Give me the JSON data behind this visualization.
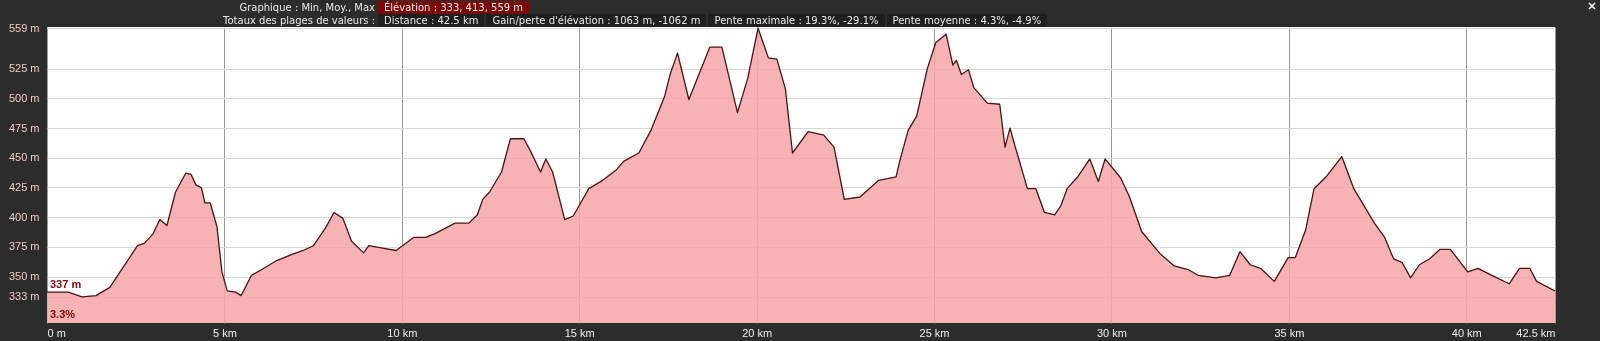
{
  "chart_data": {
    "type": "area",
    "title": "Graphique : Min, Moy., Max",
    "subtitle": "Totaux des plages de valeurs :",
    "annotations": [
      "Élévation : 333, 413, 559 m",
      "Distance : 42.5 km",
      "Gain/perte d'élévation : 1063 m, -1062 m",
      "Pente maximale : 19.3%, -29.1%",
      "Pente moyenne : 4.3%, -4.9%",
      {
        "text": "337 m",
        "x": 0,
        "y": 337
      },
      {
        "text": "3.3%",
        "x": 0
      }
    ],
    "series": [
      {
        "color": "#f6a5a7",
        "x": [
          0,
          0.6,
          0.99,
          1.38,
          1.77,
          2.06,
          2.55,
          2.74,
          2.99,
          3.18,
          3.38,
          3.62,
          3.91,
          4.06,
          4.2,
          4.35,
          4.45,
          4.6,
          4.79,
          4.93,
          5.08,
          5.32,
          5.47,
          5.76,
          6.05,
          6.44,
          6.93,
          7.22,
          7.51,
          7.85,
          8.09,
          8.34,
          8.58,
          8.92,
          9.07,
          9.46,
          9.84,
          10.33,
          10.67,
          10.92,
          11.5,
          11.89,
          12.13,
          12.28,
          12.47,
          12.81,
          13.06,
          13.44,
          13.62,
          13.91,
          14.06,
          14.25,
          14.59,
          14.83,
          15.27,
          15.66,
          16.05,
          16.25,
          16.68,
          17.02,
          17.41,
          17.56,
          17.77,
          18.09,
          18.68,
          19.02,
          19.46,
          19.75,
          20.04,
          20.33,
          20.57,
          20.81,
          21.01,
          21.45,
          21.89,
          22.18,
          22.47,
          22.91,
          23.44,
          23.93,
          24.03,
          24.27,
          24.51,
          24.81,
          25.05,
          25.34,
          25.53,
          25.63,
          25.77,
          25.97,
          26.12,
          26.5,
          26.85,
          27.0,
          27.14,
          27.29,
          27.63,
          27.87,
          28.11,
          28.4,
          28.58,
          28.75,
          29.05,
          29.39,
          29.63,
          29.82,
          30.26,
          30.51,
          30.85,
          31.38,
          31.77,
          32.16,
          32.45,
          32.94,
          33.33,
          33.62,
          33.91,
          34.2,
          34.59,
          34.98,
          35.18,
          35.47,
          35.71,
          36.05,
          36.49,
          36.83,
          37.41,
          37.7,
          37.95,
          38.19,
          38.43,
          38.68,
          38.97,
          39.26,
          39.55,
          40.04,
          40.33,
          40.72,
          41.21,
          41.5,
          41.79,
          41.98,
          42.5
        ],
        "values": [
          337,
          337,
          333,
          334,
          341,
          354,
          376,
          378,
          386,
          398,
          393,
          421,
          437,
          436,
          427,
          425,
          412,
          412,
          392,
          354,
          338,
          337,
          334,
          351,
          356,
          363,
          369,
          372,
          376,
          391,
          404,
          399,
          380,
          370,
          376,
          374,
          372,
          383,
          383,
          386,
          395,
          395,
          402,
          415,
          421,
          438,
          466,
          466,
          456,
          438,
          449,
          438,
          398,
          401,
          424,
          431,
          440,
          447,
          454,
          473,
          502,
          520,
          538,
          499,
          543,
          543,
          488,
          517,
          559,
          534,
          533,
          508,
          454,
          472,
          469,
          459,
          415,
          417,
          431,
          434,
          447,
          473,
          485,
          525,
          547,
          554,
          528,
          532,
          520,
          524,
          509,
          496,
          495,
          459,
          475,
          459,
          424,
          424,
          404,
          402,
          410,
          424,
          434,
          449,
          430,
          449,
          433,
          417,
          388,
          369,
          359,
          356,
          351,
          349,
          351,
          371,
          360,
          357,
          346,
          366,
          366,
          389,
          424,
          434,
          451,
          424,
          395,
          383,
          365,
          362,
          349,
          360,
          365,
          373,
          373,
          354,
          357,
          351,
          344,
          357,
          357,
          346,
          338
        ]
      }
    ],
    "xlim": [
      0,
      42.5
    ],
    "xticks": [
      {
        "value": 0,
        "label": "0 m"
      },
      {
        "value": 5,
        "label": "5 km"
      },
      {
        "value": 10,
        "label": "10 km"
      },
      {
        "value": 15,
        "label": "15 km"
      },
      {
        "value": 20,
        "label": "20 km"
      },
      {
        "value": 25,
        "label": "25 km"
      },
      {
        "value": 30,
        "label": "30 km"
      },
      {
        "value": 35,
        "label": "35 km"
      },
      {
        "value": 40,
        "label": "40 km"
      },
      {
        "value": 42.5,
        "label": "42.5 km"
      }
    ],
    "ylim": [
      311,
      560
    ],
    "yticks": [
      {
        "value": 333,
        "label": "333 m"
      },
      {
        "value": 350,
        "label": "350 m"
      },
      {
        "value": 375,
        "label": "375 m"
      },
      {
        "value": 400,
        "label": "400 m"
      },
      {
        "value": 425,
        "label": "425 m"
      },
      {
        "value": 450,
        "label": "450 m"
      },
      {
        "value": 475,
        "label": "475 m"
      },
      {
        "value": 500,
        "label": "500 m"
      },
      {
        "value": 525,
        "label": "525 m"
      },
      {
        "value": 559,
        "label": "559 m"
      }
    ],
    "grid": true
  }
}
